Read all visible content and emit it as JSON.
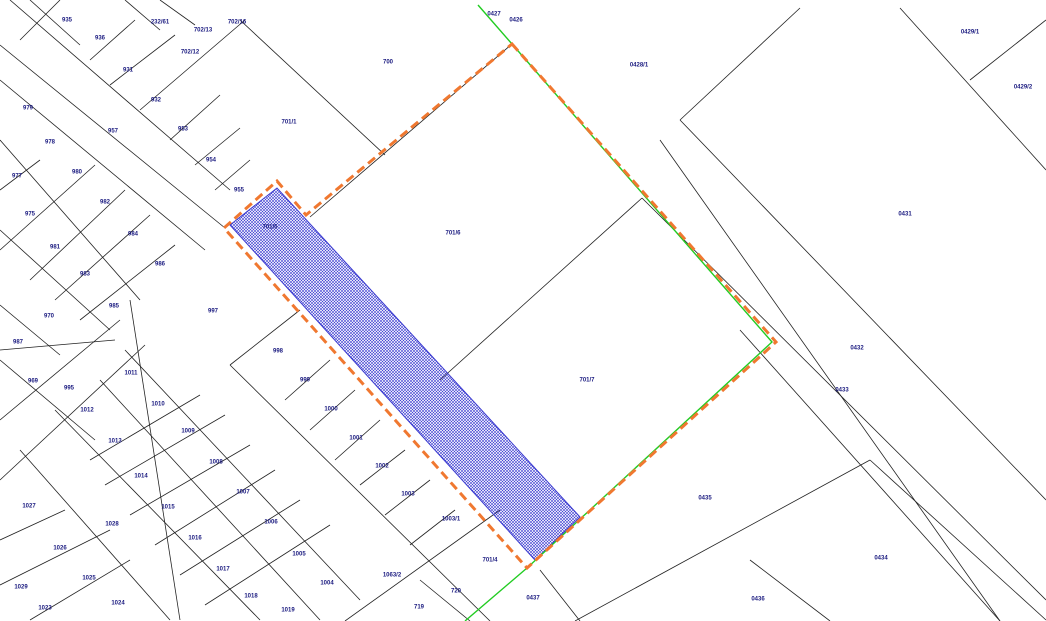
{
  "parcels": [
    "935",
    "936",
    "232/61",
    "702/13",
    "702/16",
    "0427",
    "0426",
    "702/12",
    "700",
    "0429/1",
    "0428/1",
    "931",
    "0429/2",
    "979",
    "932",
    "701/1",
    "957",
    "953",
    "978",
    "977",
    "980",
    "954",
    "955",
    "975",
    "982",
    "701/5",
    "701/6",
    "0431",
    "984",
    "981",
    "986",
    "983",
    "985",
    "997",
    "970",
    "987",
    "998",
    "0432",
    "1011",
    "969",
    "995",
    "999",
    "701/7",
    "0433",
    "1012",
    "1010",
    "1000",
    "1009",
    "1001",
    "1013",
    "1008",
    "1002",
    "1014",
    "1007",
    "1003",
    "0435",
    "1027",
    "1015",
    "1006",
    "1003/1",
    "1028",
    "1016",
    "1005",
    "701/4",
    "0434",
    "1026",
    "1017",
    "1063/2",
    "1025",
    "1004",
    "1029",
    "1018",
    "720",
    "0437",
    "0436",
    "1024",
    "1023",
    "1019",
    "719"
  ]
}
